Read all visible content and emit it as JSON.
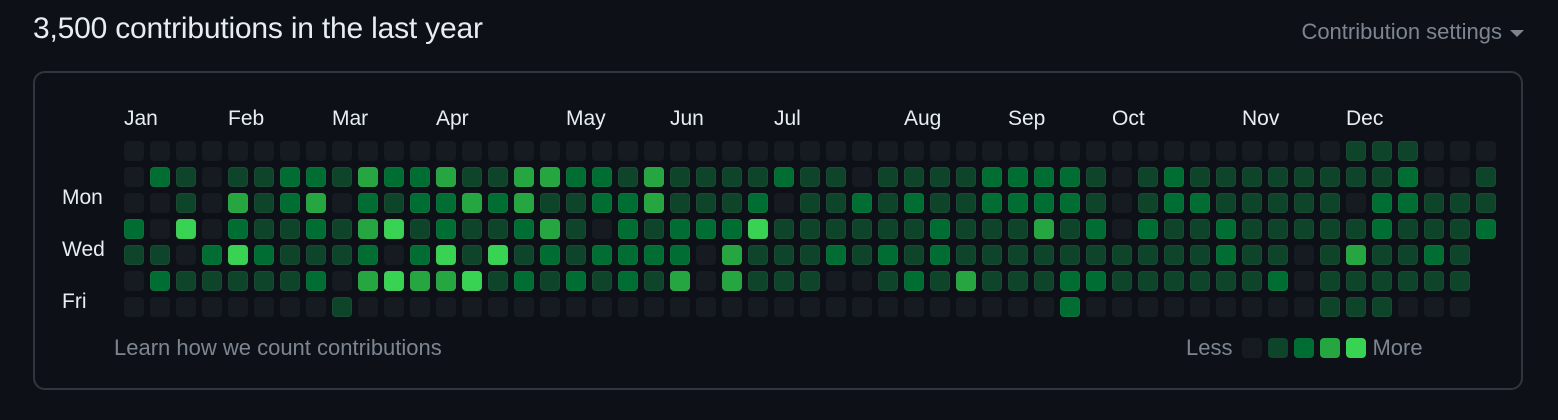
{
  "header": {
    "title": "3,500 contributions in the last year",
    "settings_label": "Contribution settings",
    "settings_icon": "caret-down-icon"
  },
  "calendar": {
    "months": [
      {
        "label": "Jan",
        "col": 0
      },
      {
        "label": "Feb",
        "col": 4
      },
      {
        "label": "Mar",
        "col": 8
      },
      {
        "label": "Apr",
        "col": 12
      },
      {
        "label": "May",
        "col": 17
      },
      {
        "label": "Jun",
        "col": 21
      },
      {
        "label": "Jul",
        "col": 25
      },
      {
        "label": "Aug",
        "col": 30
      },
      {
        "label": "Sep",
        "col": 34
      },
      {
        "label": "Oct",
        "col": 38
      },
      {
        "label": "Nov",
        "col": 43
      },
      {
        "label": "Dec",
        "col": 47
      }
    ],
    "day_labels": [
      {
        "label": "Mon",
        "row": 1
      },
      {
        "label": "Wed",
        "row": 3
      },
      {
        "label": "Fri",
        "row": 5
      }
    ],
    "cell_pitch": 26,
    "colors": [
      "#161b22",
      "#0e4429",
      "#006d32",
      "#26a641",
      "#39d353"
    ],
    "weeks": [
      [
        0,
        0,
        0,
        2,
        1,
        0,
        0
      ],
      [
        0,
        2,
        0,
        0,
        1,
        2,
        0
      ],
      [
        0,
        1,
        1,
        4,
        0,
        1,
        0
      ],
      [
        0,
        0,
        0,
        0,
        2,
        1,
        0
      ],
      [
        0,
        1,
        3,
        2,
        4,
        1,
        0
      ],
      [
        0,
        1,
        1,
        1,
        2,
        1,
        0
      ],
      [
        0,
        2,
        2,
        1,
        1,
        1,
        0
      ],
      [
        0,
        2,
        3,
        2,
        1,
        2,
        0
      ],
      [
        0,
        1,
        0,
        1,
        1,
        0,
        1
      ],
      [
        0,
        3,
        2,
        3,
        2,
        3,
        0
      ],
      [
        0,
        2,
        1,
        4,
        0,
        4,
        0
      ],
      [
        0,
        2,
        2,
        1,
        2,
        3,
        0
      ],
      [
        0,
        3,
        2,
        2,
        4,
        3,
        0
      ],
      [
        0,
        1,
        3,
        1,
        1,
        4,
        0
      ],
      [
        0,
        1,
        2,
        1,
        4,
        1,
        0
      ],
      [
        0,
        3,
        3,
        2,
        1,
        2,
        0
      ],
      [
        0,
        3,
        1,
        3,
        2,
        1,
        0
      ],
      [
        0,
        2,
        1,
        1,
        1,
        2,
        0
      ],
      [
        0,
        2,
        2,
        0,
        2,
        1,
        0
      ],
      [
        0,
        1,
        2,
        2,
        2,
        2,
        0
      ],
      [
        0,
        3,
        3,
        1,
        2,
        1,
        0
      ],
      [
        0,
        1,
        1,
        2,
        2,
        3,
        0
      ],
      [
        0,
        1,
        1,
        2,
        0,
        0,
        0
      ],
      [
        0,
        1,
        1,
        2,
        3,
        3,
        0
      ],
      [
        0,
        1,
        2,
        4,
        1,
        1,
        0
      ],
      [
        0,
        2,
        0,
        1,
        1,
        1,
        0
      ],
      [
        0,
        1,
        1,
        1,
        1,
        1,
        0
      ],
      [
        0,
        1,
        1,
        1,
        2,
        0,
        0
      ],
      [
        0,
        0,
        2,
        1,
        1,
        0,
        0
      ],
      [
        0,
        1,
        1,
        1,
        2,
        1,
        0
      ],
      [
        0,
        1,
        2,
        1,
        1,
        2,
        0
      ],
      [
        0,
        1,
        1,
        2,
        2,
        1,
        0
      ],
      [
        0,
        1,
        1,
        1,
        1,
        3,
        0
      ],
      [
        0,
        2,
        2,
        1,
        1,
        1,
        0
      ],
      [
        0,
        2,
        2,
        1,
        1,
        1,
        0
      ],
      [
        0,
        2,
        2,
        3,
        1,
        1,
        0
      ],
      [
        0,
        2,
        2,
        1,
        1,
        2,
        2
      ],
      [
        0,
        1,
        1,
        2,
        1,
        2,
        0
      ],
      [
        0,
        0,
        0,
        0,
        1,
        1,
        0
      ],
      [
        0,
        1,
        1,
        2,
        1,
        1,
        0
      ],
      [
        0,
        2,
        2,
        1,
        1,
        1,
        0
      ],
      [
        0,
        1,
        2,
        1,
        1,
        1,
        0
      ],
      [
        0,
        1,
        1,
        2,
        2,
        1,
        0
      ],
      [
        0,
        1,
        1,
        1,
        1,
        1,
        0
      ],
      [
        0,
        1,
        1,
        1,
        1,
        2,
        0
      ],
      [
        0,
        1,
        1,
        1,
        0,
        0,
        0
      ],
      [
        0,
        1,
        1,
        1,
        1,
        1,
        1
      ],
      [
        1,
        1,
        0,
        1,
        3,
        1,
        1
      ],
      [
        1,
        1,
        2,
        2,
        1,
        1,
        1
      ],
      [
        1,
        2,
        2,
        1,
        1,
        1,
        0
      ],
      [
        0,
        0,
        1,
        1,
        2,
        1,
        0
      ],
      [
        0,
        0,
        1,
        1,
        1,
        1,
        0
      ],
      [
        0,
        1,
        1,
        2
      ]
    ]
  },
  "footer": {
    "learn_link": "Learn how we count contributions",
    "legend_less": "Less",
    "legend_more": "More"
  }
}
